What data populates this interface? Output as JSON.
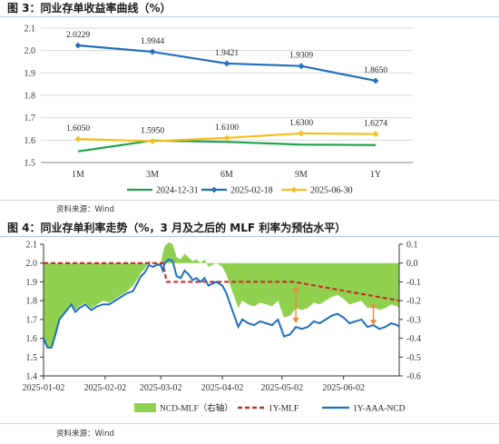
{
  "figure3": {
    "header": "图 3：同业存单收益率曲线（%）",
    "source": "资料来源：Wind",
    "chart_data": {
      "type": "line",
      "categories": [
        "1M",
        "3M",
        "6M",
        "9M",
        "1Y"
      ],
      "ylim": [
        1.5,
        2.1
      ],
      "yticks": [
        "1.5",
        "1.6",
        "1.7",
        "1.8",
        "1.9",
        "2.0",
        "2.1"
      ],
      "grid": true,
      "legend_position": "bottom",
      "series": [
        {
          "name": "2024-12-31",
          "color": "#1fa24a",
          "marker": "none",
          "values": [
            1.55,
            1.598,
            1.592,
            1.58,
            1.578
          ]
        },
        {
          "name": "2025-02-18",
          "color": "#1f6fbf",
          "marker": "diamond",
          "values": [
            2.0229,
            1.9944,
            1.9421,
            1.9309,
            1.865
          ],
          "labels": [
            "2.0229",
            "1.9944",
            "1.9421",
            "1.9309",
            "1.8650"
          ]
        },
        {
          "name": "2025-06-30",
          "color": "#f5bf1a",
          "marker": "diamond",
          "values": [
            1.605,
            1.595,
            1.61,
            1.63,
            1.6274
          ],
          "labels": [
            "1.6050",
            "1.5950",
            "1.6100",
            "1.6300",
            "1.6274"
          ]
        }
      ]
    }
  },
  "figure4": {
    "header": "图 4：同业存单利率走势（%，3 月及之后的 MLF 利率为预估水平）",
    "source": "资料来源：Wind",
    "chart_data": {
      "type": "line",
      "x_range": [
        "2025-01-02",
        "2025-06-30"
      ],
      "xticks": [
        "2025-01-02",
        "2025-02-02",
        "2025-03-02",
        "2025-04-02",
        "2025-05-02",
        "2025-06-02"
      ],
      "ylim": [
        1.4,
        2.1
      ],
      "yticks": [
        "1.4",
        "1.5",
        "1.6",
        "1.7",
        "1.8",
        "1.9",
        "2.0",
        "2.1"
      ],
      "y2lim": [
        -0.6,
        0.1
      ],
      "y2ticks": [
        "-0.6",
        "-0.5",
        "-0.4",
        "-0.3",
        "-0.2",
        "-0.1",
        "0.0",
        "0.1"
      ],
      "legend_position": "bottom",
      "series": [
        {
          "name": "NCD-MLF（右轴）",
          "type": "area",
          "axis": "right",
          "color": "#8fd14f",
          "x": [
            "2025-01-02",
            "2025-01-04",
            "2025-01-06",
            "2025-01-08",
            "2025-01-10",
            "2025-01-13",
            "2025-01-16",
            "2025-01-18",
            "2025-01-20",
            "2025-01-23",
            "2025-01-26",
            "2025-01-29",
            "2025-02-01",
            "2025-02-04",
            "2025-02-07",
            "2025-02-10",
            "2025-02-13",
            "2025-02-16",
            "2025-02-18",
            "2025-02-20",
            "2025-02-22",
            "2025-02-24",
            "2025-02-26",
            "2025-02-28",
            "2025-03-02",
            "2025-03-03",
            "2025-03-04",
            "2025-03-06",
            "2025-03-08",
            "2025-03-10",
            "2025-03-12",
            "2025-03-14",
            "2025-03-16",
            "2025-03-18",
            "2025-03-20",
            "2025-03-22",
            "2025-03-24",
            "2025-03-26",
            "2025-03-28",
            "2025-03-30",
            "2025-04-02",
            "2025-04-04",
            "2025-04-06",
            "2025-04-08",
            "2025-04-10",
            "2025-04-12",
            "2025-04-15",
            "2025-04-18",
            "2025-04-21",
            "2025-04-24",
            "2025-04-27",
            "2025-04-30",
            "2025-05-03",
            "2025-05-06",
            "2025-05-09",
            "2025-05-12",
            "2025-05-15",
            "2025-05-18",
            "2025-05-21",
            "2025-05-24",
            "2025-05-27",
            "2025-05-30",
            "2025-06-02",
            "2025-06-05",
            "2025-06-08",
            "2025-06-11",
            "2025-06-14",
            "2025-06-17",
            "2025-06-20",
            "2025-06-23",
            "2025-06-26",
            "2025-06-29",
            "2025-06-30"
          ],
          "values": [
            -0.42,
            -0.45,
            -0.44,
            -0.38,
            -0.3,
            -0.26,
            -0.22,
            -0.25,
            -0.23,
            -0.21,
            -0.24,
            -0.22,
            -0.2,
            -0.21,
            -0.19,
            -0.17,
            -0.15,
            -0.12,
            -0.09,
            -0.05,
            -0.03,
            0.01,
            0.0,
            -0.01,
            0.0,
            0.05,
            0.09,
            0.11,
            0.1,
            0.03,
            0.02,
            0.05,
            0.03,
            0.01,
            0.02,
            0.0,
            0.02,
            -0.02,
            -0.01,
            0.0,
            -0.02,
            -0.06,
            -0.12,
            -0.18,
            -0.24,
            -0.2,
            -0.22,
            -0.23,
            -0.21,
            -0.22,
            -0.23,
            -0.2,
            -0.29,
            -0.28,
            -0.24,
            -0.25,
            -0.24,
            -0.21,
            -0.22,
            -0.2,
            -0.18,
            -0.17,
            -0.19,
            -0.22,
            -0.21,
            -0.2,
            -0.24,
            -0.23,
            -0.25,
            -0.24,
            -0.22,
            -0.23,
            -0.24
          ]
        },
        {
          "name": "1Y-MLF",
          "type": "step",
          "axis": "left",
          "color": "#cc1f1f",
          "dashed": true,
          "x": [
            "2025-01-02",
            "2025-03-03",
            "2025-03-05",
            "2025-05-08",
            "2025-06-30"
          ],
          "values": [
            2.0,
            2.0,
            1.9,
            1.9,
            1.8
          ]
        },
        {
          "name": "1Y-AAA-NCD",
          "type": "line",
          "axis": "left",
          "color": "#1f6fbf",
          "x": [
            "2025-01-02",
            "2025-01-04",
            "2025-01-06",
            "2025-01-08",
            "2025-01-10",
            "2025-01-13",
            "2025-01-16",
            "2025-01-18",
            "2025-01-20",
            "2025-01-23",
            "2025-01-26",
            "2025-01-29",
            "2025-02-01",
            "2025-02-04",
            "2025-02-07",
            "2025-02-10",
            "2025-02-13",
            "2025-02-16",
            "2025-02-18",
            "2025-02-20",
            "2025-02-22",
            "2025-02-24",
            "2025-02-26",
            "2025-02-28",
            "2025-03-02",
            "2025-03-03",
            "2025-03-04",
            "2025-03-06",
            "2025-03-08",
            "2025-03-10",
            "2025-03-12",
            "2025-03-14",
            "2025-03-16",
            "2025-03-18",
            "2025-03-20",
            "2025-03-22",
            "2025-03-24",
            "2025-03-26",
            "2025-03-28",
            "2025-03-30",
            "2025-04-02",
            "2025-04-04",
            "2025-04-06",
            "2025-04-08",
            "2025-04-10",
            "2025-04-12",
            "2025-04-15",
            "2025-04-18",
            "2025-04-21",
            "2025-04-24",
            "2025-04-27",
            "2025-04-30",
            "2025-05-03",
            "2025-05-06",
            "2025-05-09",
            "2025-05-12",
            "2025-05-15",
            "2025-05-18",
            "2025-05-21",
            "2025-05-24",
            "2025-05-27",
            "2025-05-30",
            "2025-06-02",
            "2025-06-05",
            "2025-06-08",
            "2025-06-11",
            "2025-06-14",
            "2025-06-17",
            "2025-06-20",
            "2025-06-23",
            "2025-06-26",
            "2025-06-29",
            "2025-06-30"
          ],
          "values": [
            1.6,
            1.55,
            1.55,
            1.62,
            1.7,
            1.74,
            1.78,
            1.74,
            1.76,
            1.78,
            1.75,
            1.77,
            1.78,
            1.78,
            1.8,
            1.82,
            1.84,
            1.85,
            1.89,
            1.93,
            1.95,
            1.99,
            1.98,
            1.99,
            1.99,
            1.96,
            2.0,
            2.02,
            2.01,
            1.93,
            1.92,
            1.96,
            1.94,
            1.91,
            1.92,
            1.9,
            1.92,
            1.88,
            1.89,
            1.9,
            1.88,
            1.84,
            1.78,
            1.72,
            1.66,
            1.7,
            1.68,
            1.67,
            1.69,
            1.68,
            1.67,
            1.7,
            1.61,
            1.62,
            1.66,
            1.65,
            1.66,
            1.69,
            1.68,
            1.7,
            1.72,
            1.73,
            1.71,
            1.68,
            1.69,
            1.7,
            1.66,
            1.67,
            1.65,
            1.66,
            1.68,
            1.67,
            1.66
          ]
        }
      ]
    }
  }
}
